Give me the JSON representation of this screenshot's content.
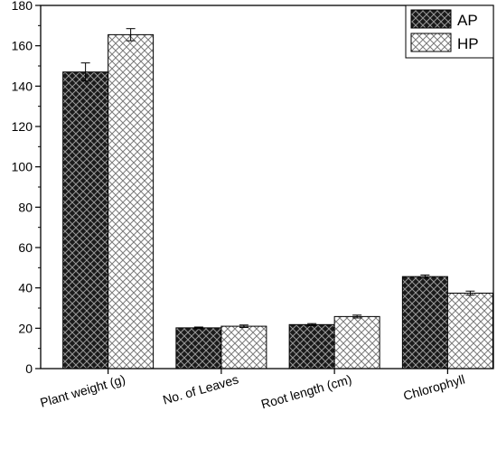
{
  "chart_data": {
    "type": "bar",
    "categories": [
      "Plant weight (g)",
      "No. of Leaves",
      "Root length (cm)",
      "Chlorophyll"
    ],
    "series": [
      {
        "name": "AP",
        "values": [
          147,
          20.2,
          21.8,
          45.6
        ],
        "errors": [
          4.5,
          0.4,
          0.5,
          0.8
        ],
        "fill": "dark-crosshatch"
      },
      {
        "name": "HP",
        "values": [
          165.5,
          21,
          25.8,
          37.4
        ],
        "errors": [
          3.0,
          0.6,
          0.7,
          1.0
        ],
        "fill": "light-crosshatch"
      }
    ],
    "title": "",
    "xlabel": "",
    "ylabel": "",
    "ylim": [
      0,
      180
    ],
    "yticks": [
      0,
      20,
      40,
      60,
      80,
      100,
      120,
      140,
      160,
      180
    ],
    "grid": false,
    "legend_position": "top-right",
    "colors": {
      "ap_fill": "#1a1a1a",
      "ap_hatch": "#9a9a9a",
      "hp_fill": "#ffffff",
      "hp_hatch": "#7a7a7a",
      "axis": "#000000"
    }
  }
}
